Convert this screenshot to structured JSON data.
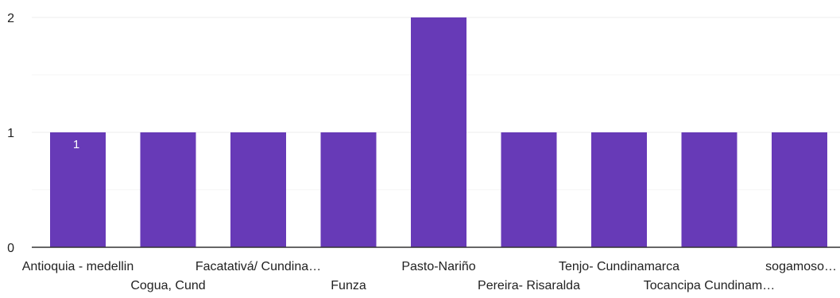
{
  "chart_data": {
    "type": "bar",
    "categories": [
      "Antioquia - medellin",
      "Cogua, Cund",
      "Facatativá/ Cundina…",
      "Funza",
      "Pasto-Nariño",
      "Pereira- Risaralda",
      "Tenjo- Cundinamarca",
      "Tocancipa Cundinam…",
      "sogamoso…"
    ],
    "values": [
      1,
      1,
      1,
      1,
      2,
      1,
      1,
      1,
      1
    ],
    "data_labels": [
      "1",
      "",
      "",
      "",
      "",
      "",
      "",
      "",
      ""
    ],
    "ylim": [
      0,
      2
    ],
    "yticks": [
      0,
      1,
      2
    ],
    "ytick_labels": [
      "0",
      "1",
      "2"
    ],
    "title": "",
    "xlabel": "",
    "ylabel": "",
    "grid": true,
    "colors": {
      "bar": "#673ab7",
      "grid": "#eeeeee",
      "grid_minor": "#f5f5f5",
      "baseline": "#333333",
      "text": "#222222",
      "data_label": "#ffffff"
    }
  }
}
